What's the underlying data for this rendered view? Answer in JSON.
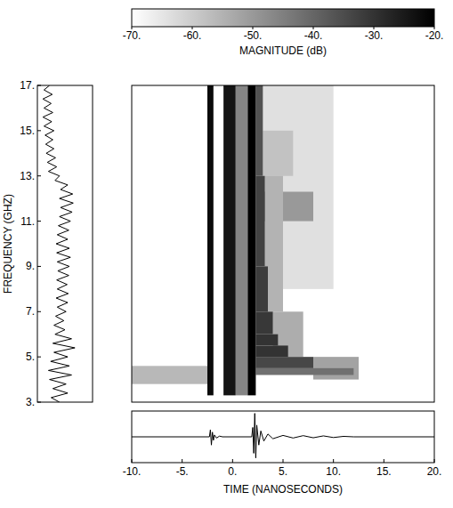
{
  "chart_data": {
    "type": "heatmap",
    "color_label": "MAGNITUDE (dB)",
    "color_lim": [
      -70,
      -20
    ],
    "color_ticks": [
      {
        "value": -70,
        "label": "-70."
      },
      {
        "value": -60,
        "label": "-60."
      },
      {
        "value": -50,
        "label": "-50."
      },
      {
        "value": -40,
        "label": "-40."
      },
      {
        "value": -30,
        "label": "-30."
      },
      {
        "value": -20,
        "label": "-20."
      }
    ],
    "xlabel": "TIME (NANOSECONDS)",
    "ylabel": "FREQUENCY (GHZ)",
    "xlim": [
      -10,
      20
    ],
    "ylim": [
      3,
      17
    ],
    "xticks": [
      {
        "value": -10,
        "label": "-10."
      },
      {
        "value": -5,
        "label": "-5."
      },
      {
        "value": 0,
        "label": "0."
      },
      {
        "value": 5,
        "label": "5."
      },
      {
        "value": 10,
        "label": "10."
      },
      {
        "value": 15,
        "label": "15."
      },
      {
        "value": 20,
        "label": "20."
      }
    ],
    "yticks": [
      {
        "value": 3,
        "label": "3."
      },
      {
        "value": 5,
        "label": "5."
      },
      {
        "value": 7,
        "label": "7."
      },
      {
        "value": 9,
        "label": "9."
      },
      {
        "value": 11,
        "label": "11."
      },
      {
        "value": 13,
        "label": "13."
      },
      {
        "value": 15,
        "label": "15."
      },
      {
        "value": 17,
        "label": "17."
      }
    ],
    "cells": [
      {
        "t": [
          2.4,
          10
        ],
        "f": [
          8,
          17
        ],
        "db": -64
      },
      {
        "t": [
          3,
          6
        ],
        "f": [
          13,
          15
        ],
        "db": -58
      },
      {
        "t": [
          3,
          8
        ],
        "f": [
          11,
          12.3
        ],
        "db": -50
      },
      {
        "t": [
          -10,
          -2.5
        ],
        "f": [
          3.8,
          4.6
        ],
        "db": -56
      },
      {
        "t": [
          3.2,
          5
        ],
        "f": [
          7,
          13
        ],
        "db": -55
      },
      {
        "t": [
          4,
          7
        ],
        "f": [
          5,
          7
        ],
        "db": -54
      },
      {
        "t": [
          8,
          12.5
        ],
        "f": [
          4,
          5
        ],
        "db": -52
      },
      {
        "t": [
          2.3,
          12
        ],
        "f": [
          4.2,
          4.5
        ],
        "db": -42
      },
      {
        "t": [
          2.3,
          8
        ],
        "f": [
          4.5,
          5
        ],
        "db": -34
      },
      {
        "t": [
          2.3,
          5.5
        ],
        "f": [
          5,
          5.5
        ],
        "db": -30
      },
      {
        "t": [
          2.3,
          4.5
        ],
        "f": [
          5.5,
          6
        ],
        "db": -30
      },
      {
        "t": [
          2.3,
          4
        ],
        "f": [
          6,
          7
        ],
        "db": -31
      },
      {
        "t": [
          2.3,
          3.5
        ],
        "f": [
          7,
          9
        ],
        "db": -32
      },
      {
        "t": [
          2.3,
          3.2
        ],
        "f": [
          9,
          13
        ],
        "db": -33
      },
      {
        "t": [
          2.3,
          3
        ],
        "f": [
          13,
          17
        ],
        "db": -36
      },
      {
        "t": [
          0.3,
          1.5
        ],
        "f": [
          3.3,
          17
        ],
        "db": -46
      },
      {
        "t": [
          -2.5,
          -1.9
        ],
        "f": [
          3.3,
          17
        ],
        "db": -22
      },
      {
        "t": [
          -0.9,
          0.3
        ],
        "f": [
          3.3,
          17
        ],
        "db": -24
      },
      {
        "t": [
          1.5,
          2.3
        ],
        "f": [
          3.3,
          17
        ],
        "db": -20
      }
    ],
    "spectrum": {
      "lim": [
        0,
        100
      ],
      "x": [
        3.0,
        3.2,
        3.4,
        3.6,
        3.8,
        4.0,
        4.2,
        4.4,
        4.6,
        4.8,
        5.0,
        5.2,
        5.4,
        5.6,
        5.8,
        6.0,
        6.2,
        6.4,
        6.6,
        6.8,
        7.0,
        7.2,
        7.4,
        7.6,
        7.8,
        8.0,
        8.2,
        8.4,
        8.6,
        8.8,
        9.0,
        9.2,
        9.4,
        9.6,
        9.8,
        10.0,
        10.2,
        10.4,
        10.6,
        10.8,
        11.0,
        11.2,
        11.4,
        11.6,
        11.8,
        12.0,
        12.2,
        12.4,
        12.6,
        12.8,
        13.0,
        13.2,
        13.4,
        13.6,
        13.8,
        14.0,
        14.2,
        14.4,
        14.6,
        14.8,
        15.0,
        15.2,
        15.4,
        15.6,
        15.8,
        16.0,
        16.2,
        16.4,
        16.6,
        16.8,
        17.0
      ],
      "values": [
        40,
        25,
        55,
        28,
        52,
        22,
        62,
        20,
        58,
        24,
        55,
        30,
        68,
        28,
        62,
        32,
        50,
        30,
        48,
        33,
        52,
        36,
        55,
        34,
        56,
        36,
        54,
        35,
        57,
        37,
        58,
        36,
        60,
        35,
        58,
        34,
        55,
        36,
        57,
        38,
        60,
        40,
        63,
        42,
        65,
        40,
        64,
        42,
        55,
        32,
        40,
        20,
        35,
        18,
        33,
        16,
        30,
        15,
        28,
        14,
        30,
        12,
        26,
        10,
        28,
        12,
        25,
        10,
        27,
        12,
        22
      ]
    },
    "signal": {
      "lim": [
        -1.1,
        1.1
      ],
      "x": [
        -10,
        -2.3,
        -2.2,
        -2.1,
        -2.0,
        -1.9,
        -1.8,
        -1.6,
        -1.3,
        -1,
        1.9,
        2.0,
        2.1,
        2.2,
        2.3,
        2.4,
        2.6,
        2.8,
        3.1,
        3.5,
        4,
        5,
        6,
        7,
        8,
        9,
        10,
        11,
        12,
        20
      ],
      "values": [
        0,
        0,
        0.3,
        -0.35,
        0.2,
        -0.15,
        0.08,
        -0.05,
        0.03,
        0,
        0,
        0.4,
        -0.7,
        1.0,
        -0.9,
        0.5,
        -0.35,
        0.25,
        -0.18,
        0.12,
        -0.08,
        0.06,
        -0.05,
        0.05,
        -0.04,
        0.04,
        -0.03,
        0.02,
        0,
        0
      ]
    }
  }
}
